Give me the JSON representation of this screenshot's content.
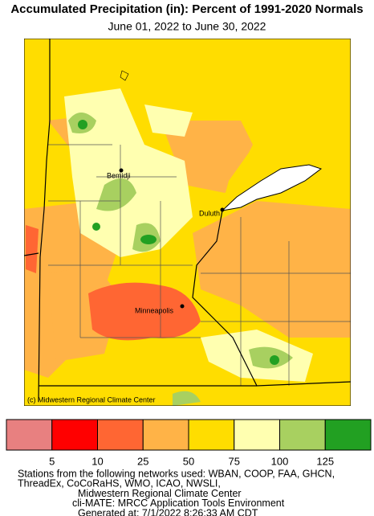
{
  "header": {
    "title": "Accumulated Precipitation (in): Percent of 1991-2020 Normals",
    "subtitle": "June 01, 2022 to June 30, 2022"
  },
  "map": {
    "cities": [
      {
        "label": "Bemidji"
      },
      {
        "label": "Duluth"
      },
      {
        "label": "Minneapolis"
      }
    ],
    "credit": "(c) Midwestern Regional Climate Center"
  },
  "legend": {
    "colors": [
      "#e88080",
      "#ff0000",
      "#ff6633",
      "#ffb347",
      "#ffdd00",
      "#ffffb0",
      "#a8d060",
      "#22a022"
    ],
    "breaks": [
      5,
      10,
      25,
      50,
      75,
      100,
      125
    ]
  },
  "footer": {
    "lines": [
      "Stations from the following networks used: WBAN, COOP, FAA, GHCN,",
      "ThreadEx, CoCoRaHS, WMO, ICAO, NWSLI,",
      "Midwestern Regional Climate Center",
      "cli-MATE: MRCC Application Tools Environment",
      "Generated at: 7/1/2022 8:26:33 AM CDT"
    ]
  }
}
